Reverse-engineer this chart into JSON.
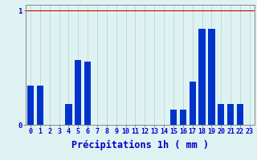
{
  "hours": [
    0,
    1,
    2,
    3,
    4,
    5,
    6,
    7,
    8,
    9,
    10,
    11,
    12,
    13,
    14,
    15,
    16,
    17,
    18,
    19,
    20,
    21,
    22,
    23
  ],
  "values": [
    0.34,
    0.34,
    0.0,
    0.0,
    0.18,
    0.57,
    0.55,
    0.0,
    0.0,
    0.0,
    0.0,
    0.0,
    0.0,
    0.0,
    0.0,
    0.13,
    0.13,
    0.38,
    0.84,
    0.84,
    0.18,
    0.18,
    0.18,
    0.0
  ],
  "bar_color": "#0033cc",
  "background_color": "#dff2f2",
  "grid_color": "#b8d8d8",
  "xlabel": "Précipitations 1h ( mm )",
  "ytick_labels": [
    "0",
    "1"
  ],
  "ytick_positions": [
    0,
    1
  ],
  "ylim": [
    0,
    1.05
  ],
  "xlim": [
    -0.5,
    23.5
  ],
  "red_line_y": 1.0,
  "red_line_color": "#cc0000",
  "label_color": "#0000cc",
  "tick_fontsize": 6.5,
  "xlabel_fontsize": 8.5,
  "bar_width": 0.7
}
